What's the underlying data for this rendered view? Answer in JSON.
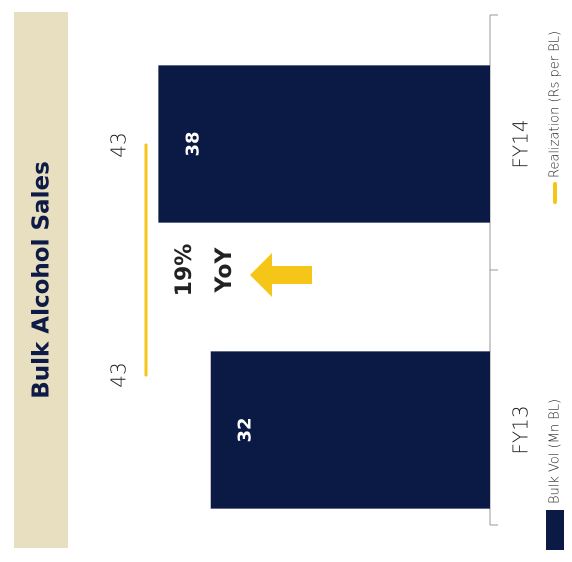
{
  "chart_data": {
    "type": "bar",
    "title": "Bulk Alcohol Sales",
    "categories": [
      "FY13",
      "FY14"
    ],
    "series": [
      {
        "name": "Bulk Vol (Mn BL)",
        "color": "#0b1a45",
        "values": [
          32,
          38
        ]
      },
      {
        "name": "Realization (Rs per BL)",
        "color": "#f5c518",
        "values": [
          43,
          43
        ],
        "axis": "y2",
        "type": "line"
      }
    ],
    "ylim": [
      0,
      55
    ],
    "y2lim": [
      0,
      60
    ],
    "annotations": [
      "19%",
      "YoY"
    ]
  }
}
